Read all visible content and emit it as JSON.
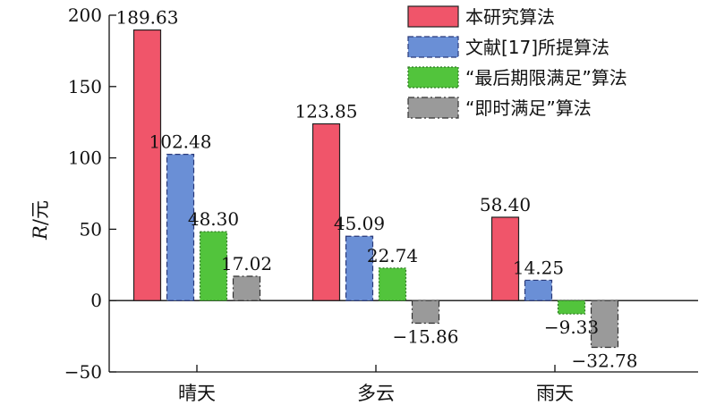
{
  "chart_data": {
    "type": "bar",
    "categories": [
      "晴天",
      "多云",
      "雨天"
    ],
    "series": [
      {
        "name": "本研究算法",
        "values": [
          189.63,
          123.85,
          58.4
        ],
        "labels": [
          "189.63",
          "123.85",
          "58.40"
        ],
        "color": "#f0556a",
        "stroke": "#222222",
        "dash": "none"
      },
      {
        "name": "文献[17]所提算法",
        "values": [
          102.48,
          45.09,
          14.25
        ],
        "labels": [
          "102.48",
          "45.09",
          "14.25"
        ],
        "color": "#6a8fd6",
        "stroke": "#2a3a7a",
        "dash": "dashed"
      },
      {
        "name": "“最后期限满足”算法",
        "values": [
          48.3,
          22.74,
          -9.33
        ],
        "labels": [
          "48.30",
          "22.74",
          "−9.33"
        ],
        "color": "#52c43c",
        "stroke": "#2e7a22",
        "dash": "dotted"
      },
      {
        "name": "“即时满足”算法",
        "values": [
          17.02,
          -15.86,
          -32.78
        ],
        "labels": [
          "17.02",
          "−15.86",
          "−32.78"
        ],
        "color": "#9a9a9a",
        "stroke": "#333333",
        "dash": "dashdot"
      }
    ],
    "ylabel": "R/元",
    "ylim": [
      -50,
      200
    ],
    "yticks": [
      -50,
      0,
      50,
      100,
      150,
      200
    ],
    "ytick_labels": [
      "−50",
      "0",
      "50",
      "100",
      "150",
      "200"
    ],
    "grid": false,
    "legend_position": "top-right"
  }
}
